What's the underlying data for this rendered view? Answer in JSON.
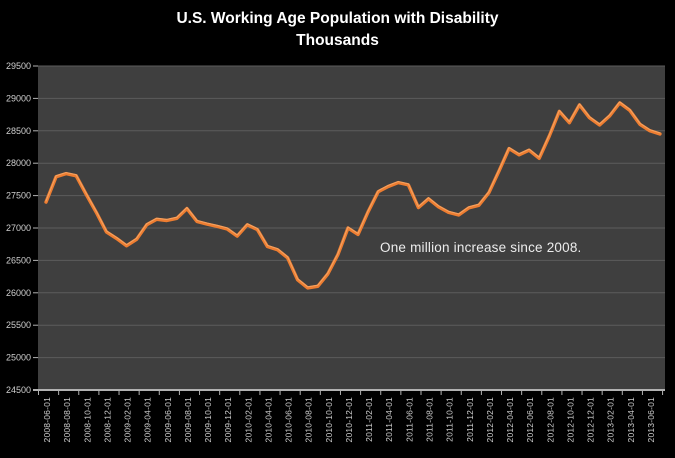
{
  "title": {
    "line1": "U.S. Working Age Population with Disability",
    "line2": "Thousands"
  },
  "colors": {
    "background": "#000000",
    "plot_background": "#3F3F3F",
    "gridline": "#5D5D5D",
    "line": "#ED7D31",
    "line_highlight": "#F9B97F",
    "axis": "#B2B2B2",
    "tick_label": "#CFCFCF",
    "title_text": "#FFFFFF",
    "annotation_text": "#ECECEC"
  },
  "chart_data": {
    "type": "line",
    "title": "U.S. Working Age Population with Disability",
    "subtitle": "Thousands",
    "annotation": "One million increase since 2008.",
    "legend": "none",
    "grid": "horizontal",
    "ylim": [
      24500,
      29500
    ],
    "ytick_interval": 500,
    "ytick_labels": [
      "29500",
      "29000",
      "28500",
      "28000",
      "27500",
      "27000",
      "26500",
      "26000",
      "25500",
      "25000",
      "24500"
    ],
    "xtick_labels": [
      "2008-06-01",
      "2008-08-01",
      "2008-10-01",
      "2008-12-01",
      "2009-02-01",
      "2009-04-01",
      "2009-06-01",
      "2009-08-01",
      "2009-10-01",
      "2009-12-01",
      "2010-02-01",
      "2010-04-01",
      "2010-06-01",
      "2010-08-01",
      "2010-10-01",
      "2010-12-01",
      "2011-02-01",
      "2011-04-01",
      "2011-06-01",
      "2011-08-01",
      "2011-10-01",
      "2011-12-01",
      "2012-02-01",
      "2012-04-01",
      "2012-06-01",
      "2012-08-01",
      "2012-10-01",
      "2012-12-01",
      "2013-02-01",
      "2013-04-01",
      "2013-06-01"
    ],
    "x": [
      "2008-06-01",
      "2008-07-01",
      "2008-08-01",
      "2008-09-01",
      "2008-10-01",
      "2008-11-01",
      "2008-12-01",
      "2009-01-01",
      "2009-02-01",
      "2009-03-01",
      "2009-04-01",
      "2009-05-01",
      "2009-06-01",
      "2009-07-01",
      "2009-08-01",
      "2009-09-01",
      "2009-10-01",
      "2009-11-01",
      "2009-12-01",
      "2010-01-01",
      "2010-02-01",
      "2010-03-01",
      "2010-04-01",
      "2010-05-01",
      "2010-06-01",
      "2010-07-01",
      "2010-08-01",
      "2010-09-01",
      "2010-10-01",
      "2010-11-01",
      "2010-12-01",
      "2011-01-01",
      "2011-02-01",
      "2011-03-01",
      "2011-04-01",
      "2011-05-01",
      "2011-06-01",
      "2011-07-01",
      "2011-08-01",
      "2011-09-01",
      "2011-10-01",
      "2011-11-01",
      "2011-12-01",
      "2012-01-01",
      "2012-02-01",
      "2012-03-01",
      "2012-04-01",
      "2012-05-01",
      "2012-06-01",
      "2012-07-01",
      "2012-08-01",
      "2012-09-01",
      "2012-10-01",
      "2012-11-01",
      "2012-12-01",
      "2013-01-01",
      "2013-02-01",
      "2013-03-01",
      "2013-04-01",
      "2013-05-01",
      "2013-06-01",
      "2013-07-01"
    ],
    "values": [
      27400,
      27790,
      27840,
      27805,
      27515,
      27240,
      26940,
      26840,
      26725,
      26825,
      27050,
      27135,
      27115,
      27150,
      27300,
      27100,
      27060,
      27025,
      26985,
      26875,
      27050,
      26975,
      26715,
      26665,
      26540,
      26200,
      26075,
      26100,
      26290,
      26590,
      27000,
      26900,
      27250,
      27560,
      27640,
      27700,
      27665,
      27315,
      27450,
      27325,
      27240,
      27200,
      27310,
      27350,
      27545,
      27880,
      28225,
      28130,
      28200,
      28075,
      28420,
      28800,
      28625,
      28900,
      28700,
      28590,
      28730,
      28930,
      28815,
      28600,
      28500,
      28450
    ]
  }
}
